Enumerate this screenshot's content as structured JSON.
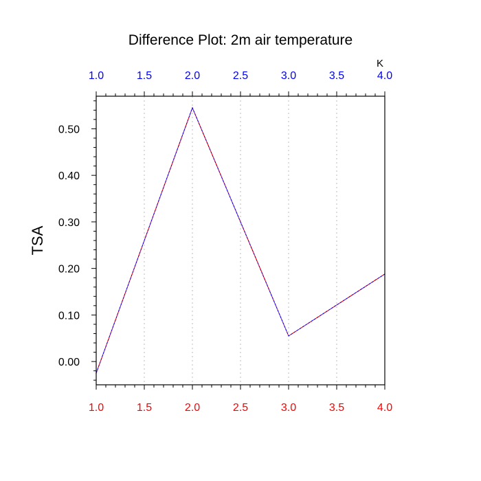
{
  "chart_data": {
    "type": "line",
    "title": "Difference Plot: 2m air temperature",
    "units": "K",
    "ylabel": "TSA",
    "xlabel": "",
    "xlim": [
      1.0,
      4.0
    ],
    "ylim": [
      -0.05,
      0.57
    ],
    "x_ticks": [
      "1.0",
      "1.5",
      "2.0",
      "2.5",
      "3.0",
      "3.5",
      "4.0"
    ],
    "y_ticks": [
      "0.00",
      "0.10",
      "0.20",
      "0.30",
      "0.40",
      "0.50"
    ],
    "grid": "vertical dotted",
    "series": [
      {
        "x": [
          1.0,
          2.0,
          3.0,
          4.0
        ],
        "y": [
          -0.025,
          0.545,
          0.055,
          0.188
        ]
      }
    ],
    "colors": {
      "bottom_axis_labels": "#ff0000",
      "top_axis_labels": "#0000ff",
      "line_primary": "#0000ff",
      "line_secondary": "#ff0000",
      "grid": "#bbbbbb",
      "axes": "#000000"
    }
  }
}
